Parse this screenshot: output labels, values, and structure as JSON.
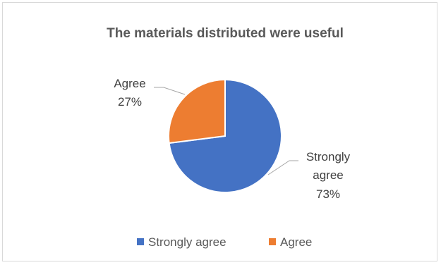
{
  "chart_data": {
    "type": "pie",
    "title": "The materials distributed were useful",
    "categories": [
      "Strongly agree",
      "Agree"
    ],
    "values": [
      73,
      27
    ],
    "value_labels": [
      "73%",
      "27%"
    ],
    "colors": [
      "#4472c4",
      "#ed7d31"
    ],
    "legend": {
      "position": "bottom",
      "entries": [
        "Strongly agree",
        "Agree"
      ]
    },
    "data_labels": [
      {
        "lines": [
          "Strongly",
          "agree",
          "73%"
        ]
      },
      {
        "lines": [
          "Agree",
          "27%"
        ]
      }
    ]
  }
}
